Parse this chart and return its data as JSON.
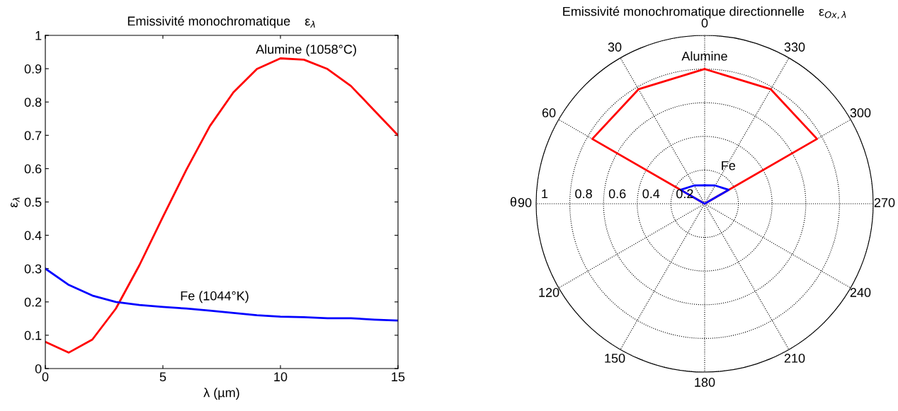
{
  "chart_data": [
    {
      "type": "line",
      "title": "Emissivité monochromatique    ε$_{λ}$",
      "xlabel": "λ (µm)",
      "ylabel": "ε$_{λ}$",
      "x": [
        0,
        1,
        2,
        3,
        4,
        5,
        6,
        7,
        8,
        9,
        10,
        11,
        12,
        13,
        14,
        15
      ],
      "series": [
        {
          "color": "#ff0000",
          "values": [
            0.08,
            0.048,
            0.087,
            0.18,
            0.31,
            0.455,
            0.597,
            0.728,
            0.829,
            0.899,
            0.931,
            0.927,
            0.899,
            0.848,
            0.774,
            0.7
          ]
        },
        {
          "color": "#0000ff",
          "values": [
            0.3,
            0.251,
            0.219,
            0.2,
            0.191,
            0.185,
            0.18,
            0.174,
            0.167,
            0.16,
            0.156,
            0.154,
            0.151,
            0.151,
            0.147,
            0.144
          ]
        }
      ],
      "xlim": [
        0,
        15
      ],
      "xticks": [
        0,
        5,
        10,
        15
      ],
      "ylim": [
        0,
        1
      ],
      "yticks": [
        0,
        0.1,
        0.2,
        0.3,
        0.4,
        0.5,
        0.6,
        0.7,
        0.8,
        0.9,
        1
      ],
      "grid": false,
      "legend": false,
      "annotations": [
        "Alumine (1058°C)",
        "Fe (1044°K)"
      ]
    },
    {
      "type": "radar",
      "title": "Emissivité monochromatique directionnelle    ε$_{Ox,λ}$",
      "ylabel": "θ",
      "categories": [
        "0",
        "330",
        "300",
        "270",
        "240",
        "210",
        "180",
        "150",
        "120",
        "90",
        "60",
        "30"
      ],
      "series": [
        {
          "color": "#ff0000",
          "values": [
            0.8,
            0.785,
            0.77,
            0,
            0,
            0,
            0,
            0,
            0,
            0,
            0.77,
            0.785
          ]
        },
        {
          "color": "#0000ff",
          "values": [
            0.11,
            0.125,
            0.165,
            0,
            0,
            0,
            0,
            0,
            0,
            0,
            0.165,
            0.125
          ]
        }
      ],
      "ylim": [
        0,
        1
      ],
      "yticks": [
        0.2,
        0.4,
        0.6,
        0.8,
        1
      ],
      "grid": true,
      "legend": false,
      "annotations": [
        "Alumine",
        "Fe"
      ]
    }
  ]
}
